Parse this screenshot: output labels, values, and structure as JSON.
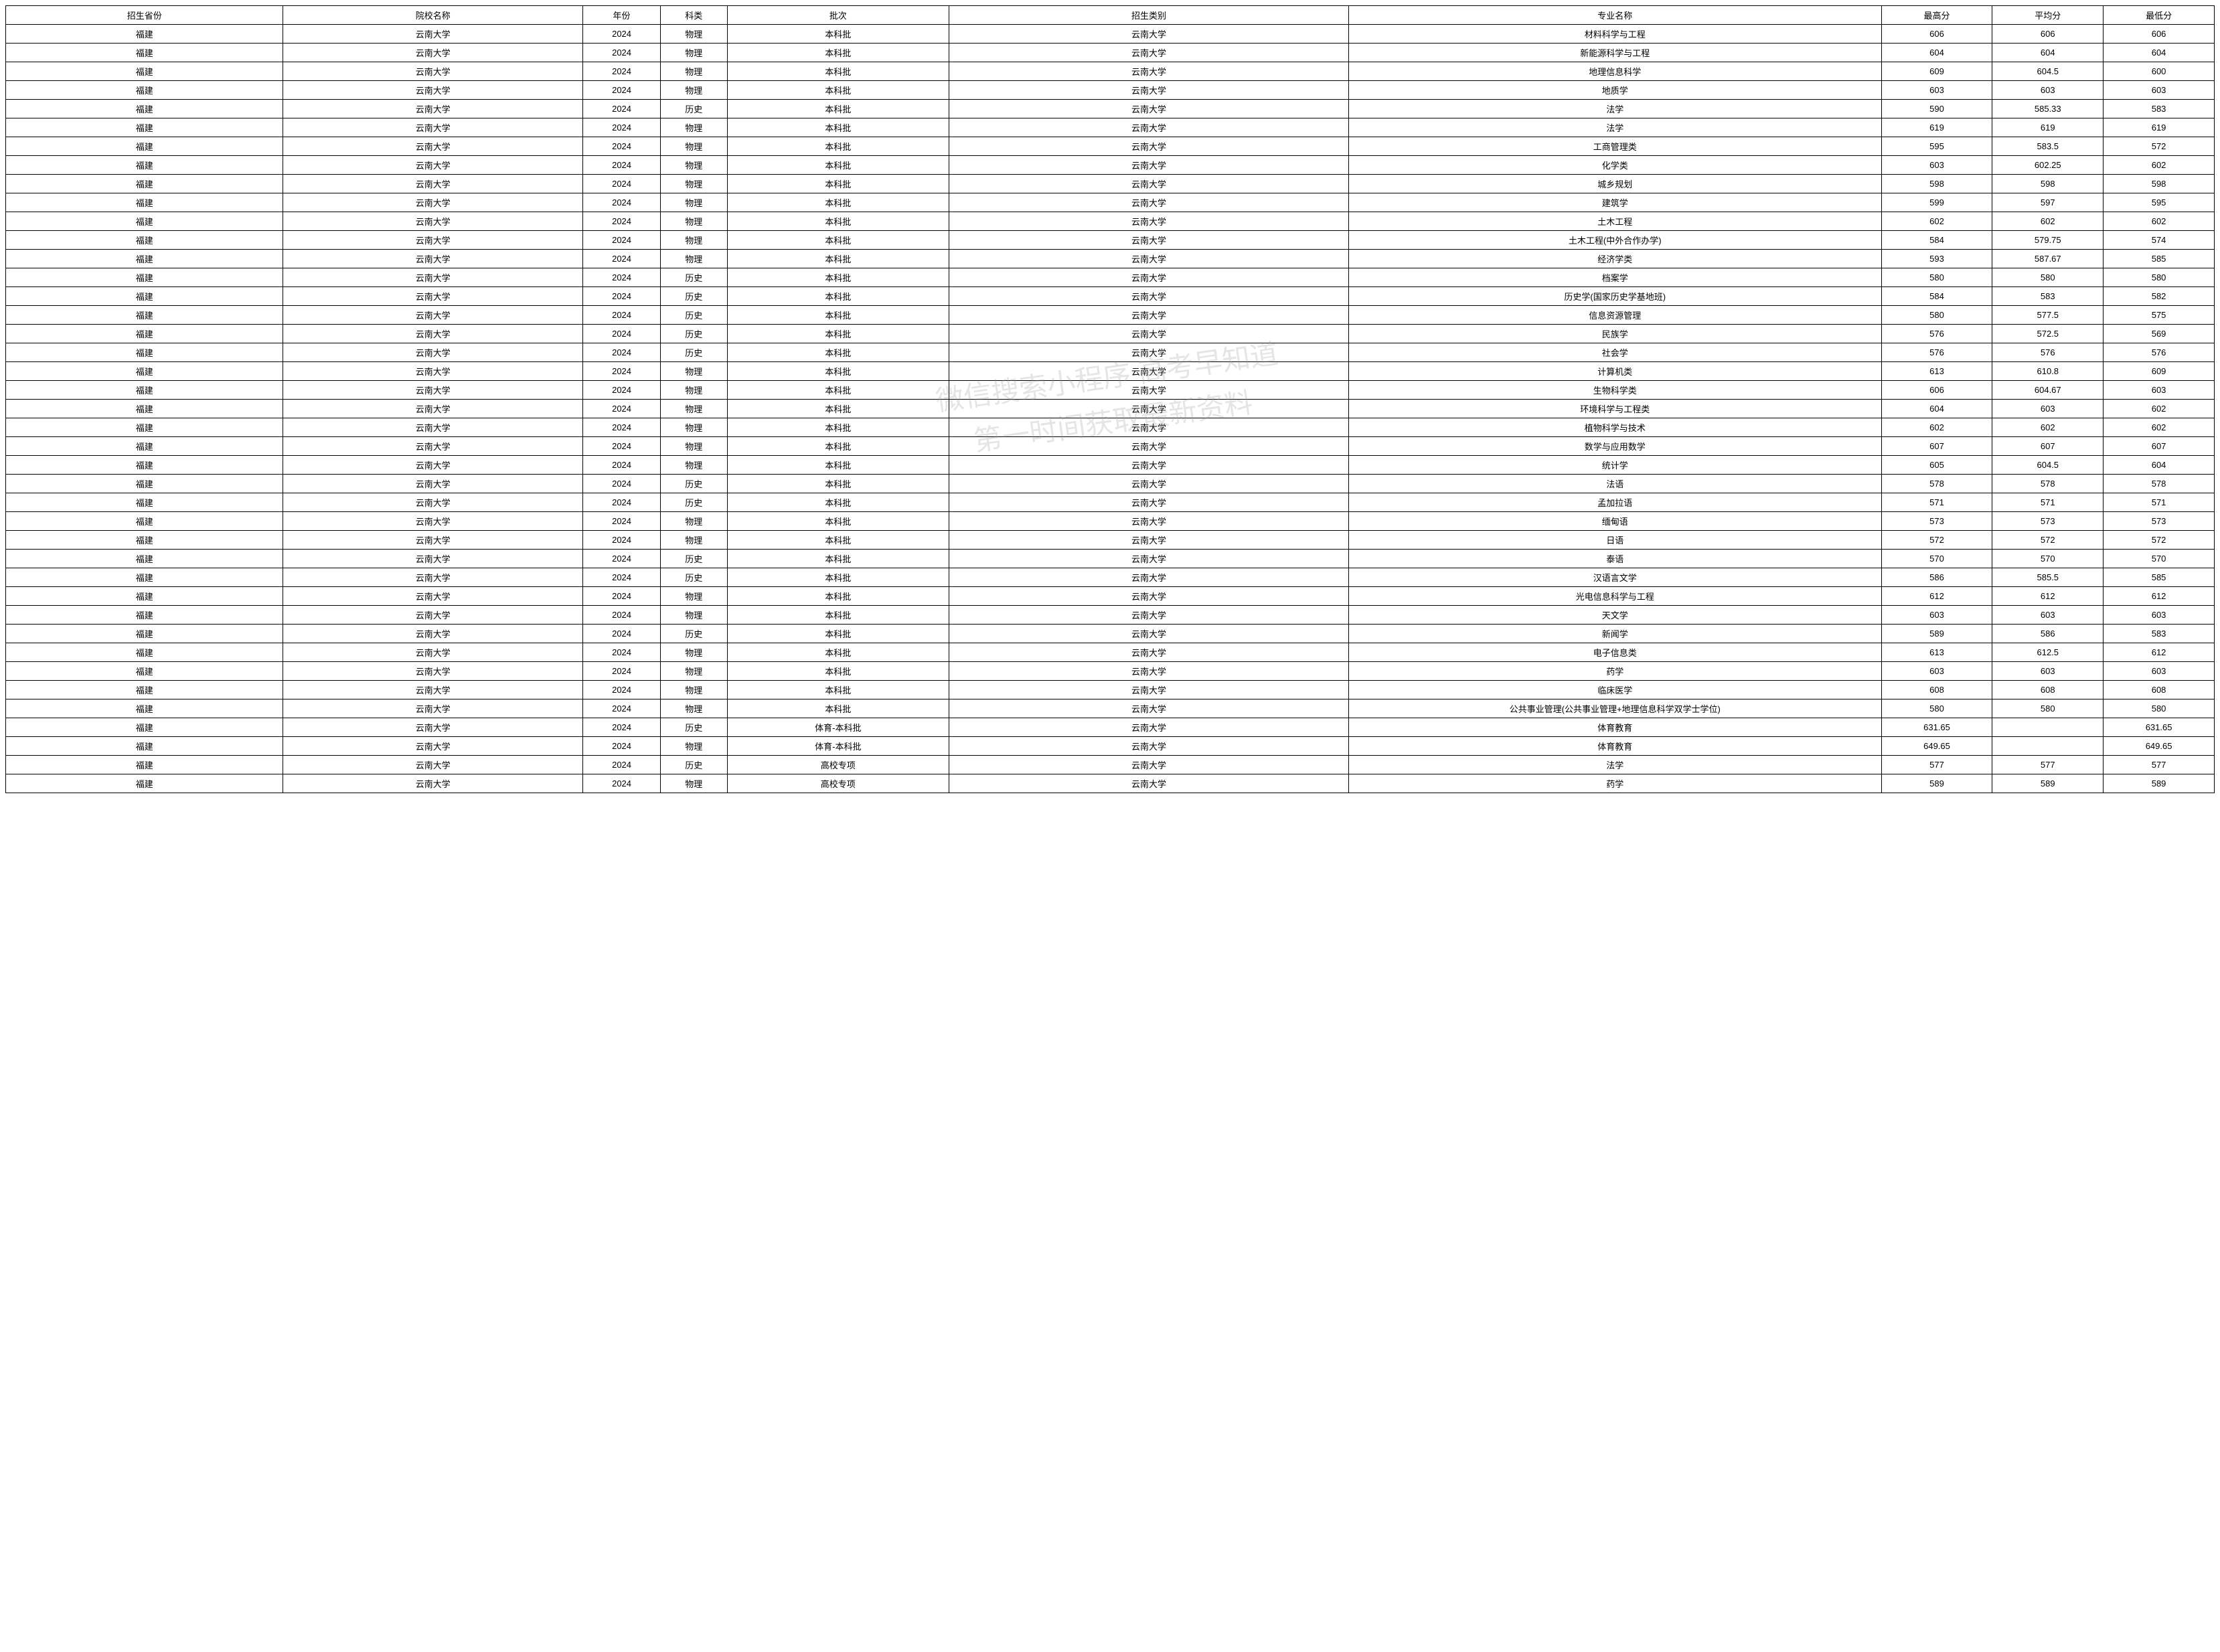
{
  "watermark": {
    "line1": "微信搜索小程序      高考早知道",
    "line2": "第一时间获取最新资料"
  },
  "table": {
    "columns": [
      "招生省份",
      "院校名称",
      "年份",
      "科类",
      "批次",
      "招生类别",
      "专业名称",
      "最高分",
      "平均分",
      "最低分"
    ],
    "column_classes": [
      "col-province",
      "col-school",
      "col-year",
      "col-subject",
      "col-batch",
      "col-category",
      "col-major",
      "col-max",
      "col-avg",
      "col-min"
    ],
    "rows": [
      [
        "福建",
        "云南大学",
        "2024",
        "物理",
        "本科批",
        "云南大学",
        "材料科学与工程",
        "606",
        "606",
        "606"
      ],
      [
        "福建",
        "云南大学",
        "2024",
        "物理",
        "本科批",
        "云南大学",
        "新能源科学与工程",
        "604",
        "604",
        "604"
      ],
      [
        "福建",
        "云南大学",
        "2024",
        "物理",
        "本科批",
        "云南大学",
        "地理信息科学",
        "609",
        "604.5",
        "600"
      ],
      [
        "福建",
        "云南大学",
        "2024",
        "物理",
        "本科批",
        "云南大学",
        "地质学",
        "603",
        "603",
        "603"
      ],
      [
        "福建",
        "云南大学",
        "2024",
        "历史",
        "本科批",
        "云南大学",
        "法学",
        "590",
        "585.33",
        "583"
      ],
      [
        "福建",
        "云南大学",
        "2024",
        "物理",
        "本科批",
        "云南大学",
        "法学",
        "619",
        "619",
        "619"
      ],
      [
        "福建",
        "云南大学",
        "2024",
        "物理",
        "本科批",
        "云南大学",
        "工商管理类",
        "595",
        "583.5",
        "572"
      ],
      [
        "福建",
        "云南大学",
        "2024",
        "物理",
        "本科批",
        "云南大学",
        "化学类",
        "603",
        "602.25",
        "602"
      ],
      [
        "福建",
        "云南大学",
        "2024",
        "物理",
        "本科批",
        "云南大学",
        "城乡规划",
        "598",
        "598",
        "598"
      ],
      [
        "福建",
        "云南大学",
        "2024",
        "物理",
        "本科批",
        "云南大学",
        "建筑学",
        "599",
        "597",
        "595"
      ],
      [
        "福建",
        "云南大学",
        "2024",
        "物理",
        "本科批",
        "云南大学",
        "土木工程",
        "602",
        "602",
        "602"
      ],
      [
        "福建",
        "云南大学",
        "2024",
        "物理",
        "本科批",
        "云南大学",
        "土木工程(中外合作办学)",
        "584",
        "579.75",
        "574"
      ],
      [
        "福建",
        "云南大学",
        "2024",
        "物理",
        "本科批",
        "云南大学",
        "经济学类",
        "593",
        "587.67",
        "585"
      ],
      [
        "福建",
        "云南大学",
        "2024",
        "历史",
        "本科批",
        "云南大学",
        "档案学",
        "580",
        "580",
        "580"
      ],
      [
        "福建",
        "云南大学",
        "2024",
        "历史",
        "本科批",
        "云南大学",
        "历史学(国家历史学基地班)",
        "584",
        "583",
        "582"
      ],
      [
        "福建",
        "云南大学",
        "2024",
        "历史",
        "本科批",
        "云南大学",
        "信息资源管理",
        "580",
        "577.5",
        "575"
      ],
      [
        "福建",
        "云南大学",
        "2024",
        "历史",
        "本科批",
        "云南大学",
        "民族学",
        "576",
        "572.5",
        "569"
      ],
      [
        "福建",
        "云南大学",
        "2024",
        "历史",
        "本科批",
        "云南大学",
        "社会学",
        "576",
        "576",
        "576"
      ],
      [
        "福建",
        "云南大学",
        "2024",
        "物理",
        "本科批",
        "云南大学",
        "计算机类",
        "613",
        "610.8",
        "609"
      ],
      [
        "福建",
        "云南大学",
        "2024",
        "物理",
        "本科批",
        "云南大学",
        "生物科学类",
        "606",
        "604.67",
        "603"
      ],
      [
        "福建",
        "云南大学",
        "2024",
        "物理",
        "本科批",
        "云南大学",
        "环境科学与工程类",
        "604",
        "603",
        "602"
      ],
      [
        "福建",
        "云南大学",
        "2024",
        "物理",
        "本科批",
        "云南大学",
        "植物科学与技术",
        "602",
        "602",
        "602"
      ],
      [
        "福建",
        "云南大学",
        "2024",
        "物理",
        "本科批",
        "云南大学",
        "数学与应用数学",
        "607",
        "607",
        "607"
      ],
      [
        "福建",
        "云南大学",
        "2024",
        "物理",
        "本科批",
        "云南大学",
        "统计学",
        "605",
        "604.5",
        "604"
      ],
      [
        "福建",
        "云南大学",
        "2024",
        "历史",
        "本科批",
        "云南大学",
        "法语",
        "578",
        "578",
        "578"
      ],
      [
        "福建",
        "云南大学",
        "2024",
        "历史",
        "本科批",
        "云南大学",
        "孟加拉语",
        "571",
        "571",
        "571"
      ],
      [
        "福建",
        "云南大学",
        "2024",
        "物理",
        "本科批",
        "云南大学",
        "缅甸语",
        "573",
        "573",
        "573"
      ],
      [
        "福建",
        "云南大学",
        "2024",
        "物理",
        "本科批",
        "云南大学",
        "日语",
        "572",
        "572",
        "572"
      ],
      [
        "福建",
        "云南大学",
        "2024",
        "历史",
        "本科批",
        "云南大学",
        "泰语",
        "570",
        "570",
        "570"
      ],
      [
        "福建",
        "云南大学",
        "2024",
        "历史",
        "本科批",
        "云南大学",
        "汉语言文学",
        "586",
        "585.5",
        "585"
      ],
      [
        "福建",
        "云南大学",
        "2024",
        "物理",
        "本科批",
        "云南大学",
        "光电信息科学与工程",
        "612",
        "612",
        "612"
      ],
      [
        "福建",
        "云南大学",
        "2024",
        "物理",
        "本科批",
        "云南大学",
        "天文学",
        "603",
        "603",
        "603"
      ],
      [
        "福建",
        "云南大学",
        "2024",
        "历史",
        "本科批",
        "云南大学",
        "新闻学",
        "589",
        "586",
        "583"
      ],
      [
        "福建",
        "云南大学",
        "2024",
        "物理",
        "本科批",
        "云南大学",
        "电子信息类",
        "613",
        "612.5",
        "612"
      ],
      [
        "福建",
        "云南大学",
        "2024",
        "物理",
        "本科批",
        "云南大学",
        "药学",
        "603",
        "603",
        "603"
      ],
      [
        "福建",
        "云南大学",
        "2024",
        "物理",
        "本科批",
        "云南大学",
        "临床医学",
        "608",
        "608",
        "608"
      ],
      [
        "福建",
        "云南大学",
        "2024",
        "物理",
        "本科批",
        "云南大学",
        "公共事业管理(公共事业管理+地理信息科学双学士学位)",
        "580",
        "580",
        "580"
      ],
      [
        "福建",
        "云南大学",
        "2024",
        "历史",
        "体育-本科批",
        "云南大学",
        "体育教育",
        "631.65",
        "",
        "631.65"
      ],
      [
        "福建",
        "云南大学",
        "2024",
        "物理",
        "体育-本科批",
        "云南大学",
        "体育教育",
        "649.65",
        "",
        "649.65"
      ],
      [
        "福建",
        "云南大学",
        "2024",
        "历史",
        "高校专项",
        "云南大学",
        "法学",
        "577",
        "577",
        "577"
      ],
      [
        "福建",
        "云南大学",
        "2024",
        "物理",
        "高校专项",
        "云南大学",
        "药学",
        "589",
        "589",
        "589"
      ]
    ]
  },
  "styling": {
    "border_color": "#000000",
    "background_color": "#ffffff",
    "text_color": "#000000",
    "font_size": 13,
    "watermark_color": "rgba(150,150,150,0.25)",
    "watermark_fontsize": 42
  }
}
